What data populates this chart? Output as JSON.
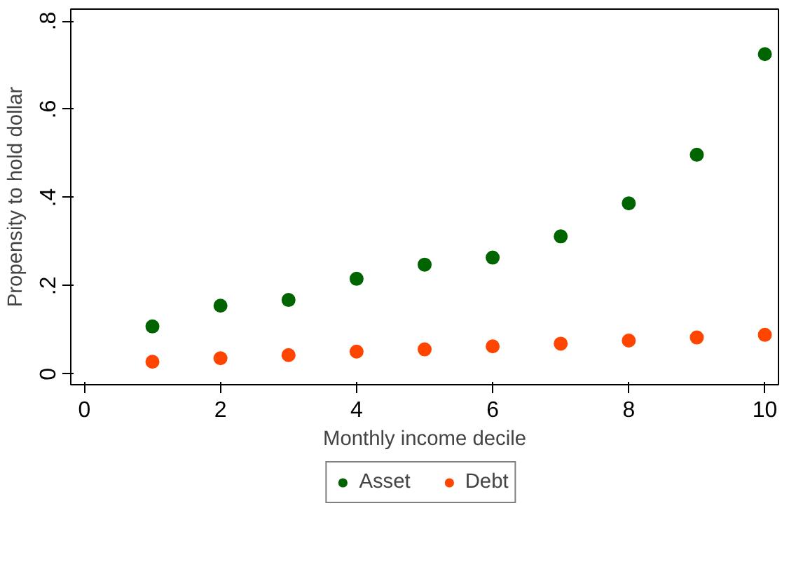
{
  "chart_data": {
    "type": "scatter",
    "xlabel": "Monthly income decile",
    "ylabel": "Propensity to hold dollar",
    "x": [
      1,
      2,
      3,
      4,
      5,
      6,
      7,
      8,
      9,
      10
    ],
    "series": [
      {
        "name": "Asset",
        "color": "#006400",
        "values": [
          0.108,
          0.155,
          0.168,
          0.216,
          0.248,
          0.264,
          0.312,
          0.387,
          0.497,
          0.725
        ]
      },
      {
        "name": "Debt",
        "color": "#ff4500",
        "values": [
          0.028,
          0.036,
          0.043,
          0.051,
          0.056,
          0.063,
          0.069,
          0.076,
          0.083,
          0.089
        ]
      }
    ],
    "xlim": [
      -0.2,
      10.2
    ],
    "ylim": [
      -0.024,
      0.827
    ],
    "xticks": [
      0,
      2,
      4,
      6,
      8,
      10
    ],
    "yticks": [
      0,
      {
        "value": 0.2,
        "label": ".2"
      },
      {
        "value": 0.4,
        "label": ".4"
      },
      {
        "value": 0.6,
        "label": ".6"
      },
      {
        "value": 0.8,
        "label": ".8"
      }
    ],
    "grid": false,
    "legend": "bottom",
    "marker": "circle"
  }
}
